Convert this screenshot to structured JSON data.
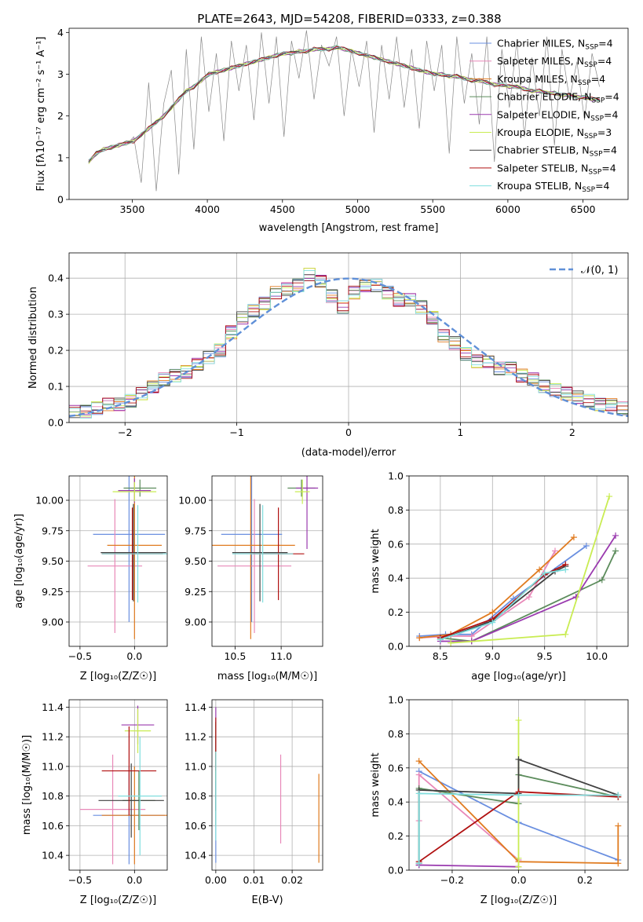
{
  "figure": {
    "title": "PLATE=2643, MJD=54208, FIBERID=0333, z=0.388"
  },
  "models": [
    {
      "name": "Chabrier MILES",
      "nssp": "4",
      "color": "#6a8fe0"
    },
    {
      "name": "Salpeter MILES",
      "nssp": "4",
      "color": "#e888b8"
    },
    {
      "name": "Kroupa MILES",
      "nssp": "4",
      "color": "#e07b20"
    },
    {
      "name": "Chabrier ELODIE",
      "nssp": "4",
      "color": "#5c8c5c"
    },
    {
      "name": "Salpeter ELODIE",
      "nssp": "4",
      "color": "#9a3aaf"
    },
    {
      "name": "Kroupa ELODIE",
      "nssp": "3",
      "color": "#c9ec52"
    },
    {
      "name": "Chabrier STELIB",
      "nssp": "4",
      "color": "#404040"
    },
    {
      "name": "Salpeter STELIB",
      "nssp": "4",
      "color": "#b01010"
    },
    {
      "name": "Kroupa STELIB",
      "nssp": "4",
      "color": "#80dede"
    }
  ],
  "chart_data": [
    {
      "id": "spectrum",
      "type": "line",
      "xlabel": "wavelength [Angstrom, rest frame]",
      "xlim": [
        3080,
        6800
      ],
      "ylim": [
        0,
        4.1
      ],
      "xticks": [
        "3500",
        "4000",
        "4500",
        "5000",
        "5500",
        "6000",
        "6500"
      ],
      "yticks": [
        "0",
        "1",
        "2",
        "3",
        "4"
      ],
      "grid": false,
      "legend": "top-right",
      "x": [
        3210,
        3260,
        3310,
        3360,
        3410,
        3460,
        3510,
        3560,
        3610,
        3660,
        3710,
        3760,
        3810,
        3860,
        3910,
        3960,
        4010,
        4060,
        4110,
        4160,
        4210,
        4260,
        4310,
        4360,
        4410,
        4460,
        4510,
        4560,
        4610,
        4660,
        4710,
        4760,
        4810,
        4860,
        4910,
        4960,
        5010,
        5060,
        5110,
        5160,
        5210,
        5260,
        5310,
        5360,
        5410,
        5460,
        5510,
        5560,
        5610,
        5660,
        5710,
        5760,
        5810,
        5860,
        5910,
        5960,
        6010,
        6060,
        6110,
        6160,
        6210,
        6260,
        6310,
        6360,
        6410,
        6460,
        6510,
        6560,
        6610
      ],
      "model_flux": [
        0.9,
        1.1,
        1.2,
        1.25,
        1.3,
        1.35,
        1.4,
        1.55,
        1.7,
        1.85,
        2.0,
        2.2,
        2.4,
        2.6,
        2.7,
        2.85,
        3.0,
        3.05,
        3.1,
        3.15,
        3.2,
        3.25,
        3.3,
        3.35,
        3.4,
        3.45,
        3.5,
        3.5,
        3.55,
        3.55,
        3.6,
        3.6,
        3.6,
        3.65,
        3.6,
        3.55,
        3.5,
        3.45,
        3.4,
        3.35,
        3.3,
        3.25,
        3.2,
        3.15,
        3.1,
        3.05,
        3.0,
        3.0,
        2.95,
        2.95,
        2.9,
        2.85,
        2.85,
        2.8,
        2.75,
        2.75,
        2.7,
        2.7,
        2.65,
        2.6,
        2.6,
        2.55,
        2.55,
        2.5,
        2.5,
        2.45,
        2.45,
        2.4,
        2.4
      ],
      "data_flux": [
        0.9,
        1.1,
        1.25,
        1.2,
        1.35,
        1.3,
        1.5,
        0.4,
        2.8,
        0.2,
        2.3,
        3.1,
        0.6,
        3.6,
        1.2,
        3.9,
        2.1,
        3.5,
        1.4,
        3.8,
        2.6,
        3.7,
        1.9,
        4.0,
        2.3,
        3.9,
        1.5,
        3.8,
        2.9,
        4.05,
        2.4,
        3.7,
        3.2,
        3.9,
        2.0,
        3.6,
        2.7,
        3.8,
        1.6,
        3.7,
        2.4,
        3.9,
        2.2,
        3.6,
        1.7,
        3.8,
        2.6,
        3.7,
        1.1,
        3.9,
        2.3,
        3.5,
        1.8,
        3.9,
        0.9,
        3.6,
        2.2,
        3.8,
        1.5,
        3.4,
        2.0,
        3.9,
        1.3,
        3.6,
        2.4,
        3.3,
        1.9,
        3.5,
        2.7
      ]
    },
    {
      "id": "residuals",
      "type": "line",
      "xlabel": "(data-model)/error",
      "ylabel": "Normed distribution",
      "xlim": [
        -2.5,
        2.5
      ],
      "ylim": [
        0,
        0.47
      ],
      "xticks": [
        "−2",
        "−1",
        "0",
        "1",
        "2"
      ],
      "yticks": [
        "0.0",
        "0.1",
        "0.2",
        "0.3",
        "0.4"
      ],
      "grid": true,
      "legend": "top-right",
      "normal_label": "𝒩(0, 1)",
      "bin_width": 0.1,
      "hist_x": [
        -2.5,
        -2.4,
        -2.3,
        -2.2,
        -2.1,
        -2.0,
        -1.9,
        -1.8,
        -1.7,
        -1.6,
        -1.5,
        -1.4,
        -1.3,
        -1.2,
        -1.1,
        -1.0,
        -0.9,
        -0.8,
        -0.7,
        -0.6,
        -0.5,
        -0.4,
        -0.3,
        -0.2,
        -0.1,
        0.0,
        0.1,
        0.2,
        0.3,
        0.4,
        0.5,
        0.6,
        0.7,
        0.8,
        0.9,
        1.0,
        1.1,
        1.2,
        1.3,
        1.4,
        1.5,
        1.6,
        1.7,
        1.8,
        1.9,
        2.0,
        2.1,
        2.2,
        2.3,
        2.4
      ],
      "hist_base": [
        0.03,
        0.03,
        0.04,
        0.05,
        0.05,
        0.06,
        0.08,
        0.1,
        0.12,
        0.13,
        0.14,
        0.16,
        0.18,
        0.2,
        0.25,
        0.29,
        0.31,
        0.33,
        0.36,
        0.37,
        0.38,
        0.41,
        0.39,
        0.35,
        0.32,
        0.36,
        0.38,
        0.38,
        0.36,
        0.34,
        0.34,
        0.32,
        0.29,
        0.24,
        0.22,
        0.19,
        0.17,
        0.17,
        0.15,
        0.15,
        0.13,
        0.12,
        0.1,
        0.09,
        0.08,
        0.07,
        0.06,
        0.05,
        0.05,
        0.04
      ]
    },
    {
      "id": "age-vs-z",
      "type": "scatter",
      "xlabel": "Z [log₁₀(Z/Z☉)]",
      "ylabel": "age  [log₁₀(age/yr)]",
      "xlim": [
        -0.6,
        0.3
      ],
      "ylim": [
        8.8,
        10.2
      ],
      "xticks": [
        "−0.5",
        "0.0"
      ],
      "yticks": [
        "9.00",
        "9.25",
        "9.50",
        "9.75",
        "10.00"
      ],
      "grid": true,
      "points": [
        {
          "x": -0.05,
          "y": 9.72,
          "xerr": 0.33,
          "yerr": 0.72
        },
        {
          "x": -0.18,
          "y": 9.46,
          "xerr": 0.25,
          "yerr": 0.55
        },
        {
          "x": 0.0,
          "y": 9.63,
          "xerr": 0.25,
          "yerr": 0.77
        },
        {
          "x": 0.05,
          "y": 10.1,
          "xerr": 0.15,
          "yerr": 0.07
        },
        {
          "x": 0.0,
          "y": 10.08,
          "xerr": 0.15,
          "yerr": 0.1
        },
        {
          "x": 0.0,
          "y": 10.07,
          "xerr": 0.2,
          "yerr": 0.08
        },
        {
          "x": -0.01,
          "y": 9.57,
          "xerr": 0.3,
          "yerr": 0.4
        },
        {
          "x": -0.02,
          "y": 9.56,
          "xerr": 0.28,
          "yerr": 0.38
        },
        {
          "x": 0.03,
          "y": 9.56,
          "xerr": 0.33,
          "yerr": 0.4
        }
      ]
    },
    {
      "id": "age-vs-mass",
      "type": "scatter",
      "xlabel": "mass [log₁₀(M/M☉)]",
      "xlim": [
        10.25,
        11.45
      ],
      "ylim": [
        8.8,
        10.2
      ],
      "xticks": [
        "10.5",
        "11.0"
      ],
      "yticks": [
        "9.00",
        "9.25",
        "9.50",
        "9.75",
        "10.00"
      ],
      "grid": true,
      "points": [
        {
          "x": 10.68,
          "y": 9.72,
          "xerr": 0.33,
          "yerr": 0.72
        },
        {
          "x": 10.71,
          "y": 9.46,
          "xerr": 0.4,
          "yerr": 0.55
        },
        {
          "x": 10.67,
          "y": 9.63,
          "xerr": 0.48,
          "yerr": 0.77
        },
        {
          "x": 11.22,
          "y": 10.1,
          "xerr": 0.15,
          "yerr": 0.07
        },
        {
          "x": 11.28,
          "y": 10.1,
          "xerr": 0.12,
          "yerr": 0.5
        },
        {
          "x": 11.23,
          "y": 10.07,
          "xerr": 0.08,
          "yerr": 0.1
        },
        {
          "x": 10.77,
          "y": 9.57,
          "xerr": 0.3,
          "yerr": 0.4
        },
        {
          "x": 10.97,
          "y": 9.56,
          "xerr": 0.28,
          "yerr": 0.38
        },
        {
          "x": 10.8,
          "y": 9.56,
          "xerr": 0.33,
          "yerr": 0.4
        }
      ]
    },
    {
      "id": "mass-weight-vs-age",
      "type": "line",
      "xlabel": "age  [log₁₀(age/yr)]",
      "ylabel": "mass weight",
      "xlim": [
        8.2,
        10.3
      ],
      "ylim": [
        0,
        1
      ],
      "xticks": [
        "8.5",
        "9.0",
        "9.5",
        "10.0"
      ],
      "yticks": [
        "0.0",
        "0.2",
        "0.4",
        "0.6",
        "0.8",
        "1.0"
      ],
      "grid": true,
      "series": [
        {
          "x": [
            8.3,
            8.55,
            8.8,
            9.2,
            9.9
          ],
          "y": [
            0.06,
            0.07,
            0.07,
            0.28,
            0.59
          ]
        },
        {
          "x": [
            8.3,
            8.6,
            8.8,
            9.35,
            9.6
          ],
          "y": [
            0.05,
            0.06,
            0.06,
            0.29,
            0.56
          ]
        },
        {
          "x": [
            8.3,
            8.6,
            9.0,
            9.45,
            9.78
          ],
          "y": [
            0.05,
            0.07,
            0.2,
            0.45,
            0.64
          ]
        },
        {
          "x": [
            8.5,
            8.8,
            10.05,
            10.18
          ],
          "y": [
            0.05,
            0.03,
            0.39,
            0.56
          ]
        },
        {
          "x": [
            8.5,
            8.8,
            9.8,
            10.18
          ],
          "y": [
            0.03,
            0.03,
            0.29,
            0.65
          ]
        },
        {
          "x": [
            8.6,
            9.7,
            10.12
          ],
          "y": [
            0.02,
            0.07,
            0.88
          ]
        },
        {
          "x": [
            8.5,
            9.0,
            9.6,
            9.7
          ],
          "y": [
            0.04,
            0.15,
            0.44,
            0.47
          ]
        },
        {
          "x": [
            8.5,
            9.0,
            9.5,
            9.7
          ],
          "y": [
            0.05,
            0.16,
            0.42,
            0.48
          ]
        },
        {
          "x": [
            8.5,
            9.0,
            9.5,
            9.7
          ],
          "y": [
            0.04,
            0.14,
            0.43,
            0.45
          ]
        }
      ]
    },
    {
      "id": "mass-vs-z",
      "type": "scatter",
      "xlabel": "Z [log₁₀(Z/Z☉)]",
      "ylabel": "mass [log₁₀(M/M☉)]",
      "xlim": [
        -0.6,
        0.3
      ],
      "ylim": [
        10.3,
        11.45
      ],
      "xticks": [
        "−0.5",
        "0.0"
      ],
      "yticks": [
        "10.4",
        "10.6",
        "10.8",
        "11.0",
        "11.2",
        "11.4"
      ],
      "grid": true,
      "points": [
        {
          "x": -0.05,
          "y": 10.67,
          "xerr": 0.33,
          "yerr": 0.33
        },
        {
          "x": -0.2,
          "y": 10.71,
          "xerr": 0.3,
          "yerr": 0.37
        },
        {
          "x": 0.0,
          "y": 10.67,
          "xerr": 0.3,
          "yerr": 0.33
        },
        {
          "x": 0.04,
          "y": 10.77,
          "xerr": 0.15,
          "yerr": 0.2
        },
        {
          "x": 0.03,
          "y": 11.28,
          "xerr": 0.15,
          "yerr": 0.13
        },
        {
          "x": 0.03,
          "y": 11.24,
          "xerr": 0.12,
          "yerr": 0.15
        },
        {
          "x": -0.03,
          "y": 10.77,
          "xerr": 0.3,
          "yerr": 0.25
        },
        {
          "x": -0.05,
          "y": 10.97,
          "xerr": 0.25,
          "yerr": 0.3
        },
        {
          "x": 0.05,
          "y": 10.8,
          "xerr": 0.2,
          "yerr": 0.4
        }
      ]
    },
    {
      "id": "mass-vs-ebv",
      "type": "scatter",
      "xlabel": "E(B-V)",
      "xlim": [
        -0.001,
        0.028
      ],
      "ylim": [
        10.3,
        11.45
      ],
      "xticks": [
        "0.00",
        "0.01",
        "0.02"
      ],
      "yticks": [
        "10.4",
        "10.6",
        "10.8",
        "11.0",
        "11.2",
        "11.4"
      ],
      "grid": true,
      "points": [
        {
          "x": 0.0,
          "y": 10.68,
          "yerr": 0.33
        },
        {
          "x": 0.017,
          "y": 10.78,
          "yerr": 0.3
        },
        {
          "x": 0.027,
          "y": 10.65,
          "yerr": 0.3
        },
        {
          "x": 0.0,
          "y": 10.9,
          "yerr": 0.3
        },
        {
          "x": 0.0,
          "y": 11.25,
          "yerr": 0.15
        },
        {
          "x": 0.0,
          "y": 11.1,
          "yerr": 0.2
        },
        {
          "x": 0.0,
          "y": 11.0,
          "yerr": 0.3
        },
        {
          "x": 0.0,
          "y": 11.15,
          "yerr": 0.18
        },
        {
          "x": 0.0,
          "y": 10.8,
          "yerr": 0.3
        }
      ]
    },
    {
      "id": "mass-weight-vs-z",
      "type": "line",
      "xlabel": "Z [log₁₀(Z/Z☉)]",
      "ylabel": "mass weight",
      "xlim": [
        -0.33,
        0.33
      ],
      "ylim": [
        0,
        1
      ],
      "xticks": [
        "−0.2",
        "0.0",
        "0.2"
      ],
      "yticks": [
        "0.0",
        "0.2",
        "0.4",
        "0.6",
        "0.8",
        "1.0"
      ],
      "grid": true,
      "series": [
        {
          "x": [
            -0.3,
            0.0,
            0.3
          ],
          "y": [
            0.58,
            0.28,
            0.06
          ]
        },
        {
          "x": [
            -0.3,
            -0.3,
            0.0
          ],
          "y": [
            0.29,
            0.56,
            0.06
          ]
        },
        {
          "x": [
            -0.3,
            0.0,
            0.3,
            0.3
          ],
          "y": [
            0.64,
            0.05,
            0.04,
            0.26
          ]
        },
        {
          "x": [
            -0.3,
            -0.3,
            0.0,
            0.0,
            0.3
          ],
          "y": [
            0.03,
            0.48,
            0.39,
            0.56,
            0.43
          ]
        },
        {
          "x": [
            -0.3,
            -0.3,
            0.0
          ],
          "y": [
            0.03,
            0.03,
            0.02
          ]
        },
        {
          "x": [
            0.0,
            0.0,
            0.0
          ],
          "y": [
            0.02,
            0.07,
            0.88
          ]
        },
        {
          "x": [
            -0.3,
            -0.3,
            0.0,
            0.0,
            0.3
          ],
          "y": [
            0.04,
            0.47,
            0.45,
            0.65,
            0.44
          ]
        },
        {
          "x": [
            -0.3,
            0.0,
            0.3
          ],
          "y": [
            0.05,
            0.46,
            0.43
          ]
        },
        {
          "x": [
            -0.3,
            -0.3,
            0.0,
            0.3
          ],
          "y": [
            0.04,
            0.45,
            0.44,
            0.44
          ]
        }
      ]
    }
  ]
}
